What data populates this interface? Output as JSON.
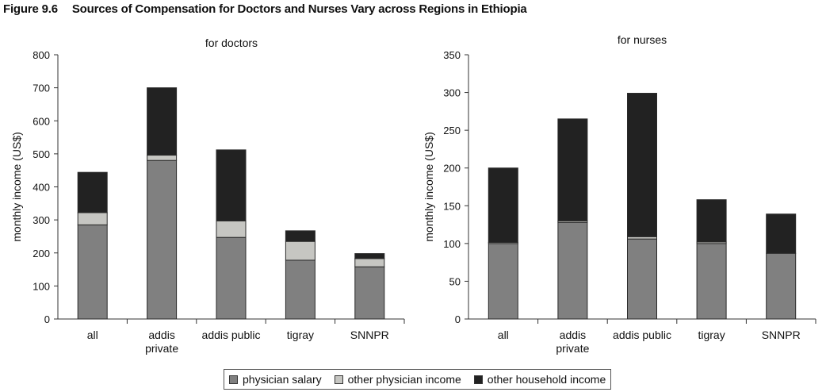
{
  "figure": {
    "number": "Figure 9.6",
    "title": "Sources of Compensation for Doctors and Nurses Vary across Regions in Ethiopia"
  },
  "colors": {
    "physician_salary": "#808080",
    "other_physician_income": "#c6c6c2",
    "other_household_income": "#222222",
    "axis": "#333333"
  },
  "legend": [
    {
      "label": "physician salary",
      "color": "#808080"
    },
    {
      "label": "other physician income",
      "color": "#c6c6c2"
    },
    {
      "label": "other household income",
      "color": "#222222"
    }
  ],
  "chart_data": [
    {
      "type": "bar",
      "stacked": true,
      "title": "for doctors",
      "ylabel": "monthly income (US$)",
      "xlabel": "",
      "ylim": [
        0,
        800
      ],
      "yticks": [
        0,
        100,
        200,
        300,
        400,
        500,
        600,
        700,
        800
      ],
      "categories": [
        [
          "all"
        ],
        [
          "addis",
          "private"
        ],
        [
          "addis public"
        ],
        [
          "tigray"
        ],
        [
          "SNNPR"
        ]
      ],
      "series": [
        {
          "name": "physician salary",
          "values": [
            285,
            480,
            247,
            178,
            158
          ]
        },
        {
          "name": "other physician income",
          "values": [
            37,
            16,
            50,
            57,
            25
          ]
        },
        {
          "name": "other household income",
          "values": [
            122,
            204,
            215,
            32,
            15
          ]
        }
      ]
    },
    {
      "type": "bar",
      "stacked": true,
      "title": "for nurses",
      "ylabel": "monthly income (US$)",
      "xlabel": "",
      "ylim": [
        0,
        350
      ],
      "yticks": [
        0,
        50,
        100,
        150,
        200,
        250,
        300,
        350
      ],
      "categories": [
        [
          "all"
        ],
        [
          "addis",
          "private"
        ],
        [
          "addis public"
        ],
        [
          "tigray"
        ],
        [
          "SNNPR"
        ]
      ],
      "series": [
        {
          "name": "physician salary",
          "values": [
            100,
            128,
            106,
            100,
            87
          ]
        },
        {
          "name": "other physician income",
          "values": [
            1.5,
            2,
            3,
            2,
            0
          ]
        },
        {
          "name": "other household income",
          "values": [
            98.5,
            135,
            190,
            56,
            52
          ]
        }
      ]
    }
  ]
}
